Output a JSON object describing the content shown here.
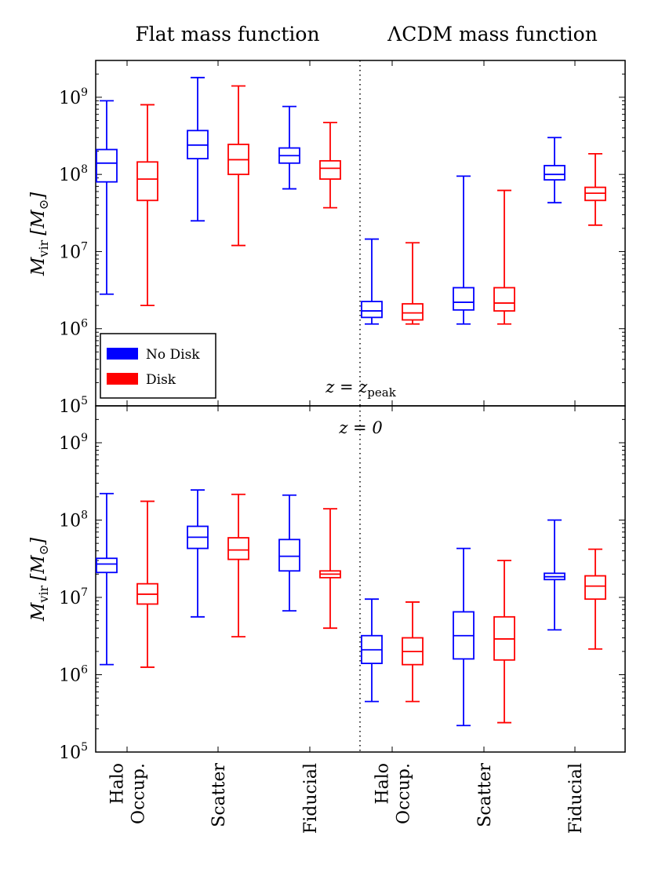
{
  "chart_data": {
    "type": "boxplot",
    "column_titles": [
      "Flat mass function",
      "ΛCDM mass function"
    ],
    "categories": [
      [
        "Halo",
        "Occup."
      ],
      [
        "Scatter"
      ],
      [
        "Fiducial"
      ],
      [
        "Halo",
        "Occup."
      ],
      [
        "Scatter"
      ],
      [
        "Fiducial"
      ]
    ],
    "ylabel": {
      "symbol": "M",
      "subscript": "vir",
      "unit_open": "[",
      "unit_symbol": "M",
      "unit_subscript": "⊙",
      "unit_close": "]"
    },
    "yscale": "log",
    "ylim": [
      100000,
      3000000000
    ],
    "yticks": [
      {
        "base": "10",
        "exp": "5",
        "value": 100000
      },
      {
        "base": "10",
        "exp": "6",
        "value": 1000000
      },
      {
        "base": "10",
        "exp": "7",
        "value": 10000000
      },
      {
        "base": "10",
        "exp": "8",
        "value": 100000000
      },
      {
        "base": "10",
        "exp": "9",
        "value": 1000000000
      }
    ],
    "legend": {
      "placement": "bottom-left of top panel",
      "entries": [
        {
          "name": "No Disk",
          "color": "#0000ff"
        },
        {
          "name": "Disk",
          "color": "#ff0000"
        }
      ]
    },
    "panels": [
      {
        "annotation": {
          "base": "z = z",
          "subscript": "peak"
        },
        "series": [
          {
            "name": "No Disk",
            "color": "#0000ff",
            "boxes": [
              {
                "min": 2800000,
                "q1": 80000000,
                "median": 140000000,
                "q3": 210000000,
                "max": 900000000
              },
              {
                "min": 25000000,
                "q1": 160000000,
                "median": 240000000,
                "q3": 370000000,
                "max": 1800000000
              },
              {
                "min": 65000000,
                "q1": 140000000,
                "median": 175000000,
                "q3": 220000000,
                "max": 760000000
              },
              {
                "min": 1150000,
                "q1": 1400000,
                "median": 1700000,
                "q3": 2250000,
                "max": 14500000
              },
              {
                "min": 1150000,
                "q1": 1750000,
                "median": 2200000,
                "q3": 3400000,
                "max": 95000000
              },
              {
                "min": 43000000,
                "q1": 85000000,
                "median": 100000000,
                "q3": 130000000,
                "max": 300000000
              }
            ]
          },
          {
            "name": "Disk",
            "color": "#ff0000",
            "boxes": [
              {
                "min": 2000000,
                "q1": 46000000,
                "median": 87000000,
                "q3": 145000000,
                "max": 800000000
              },
              {
                "min": 12000000,
                "q1": 100000000,
                "median": 155000000,
                "q3": 245000000,
                "max": 1400000000
              },
              {
                "min": 37000000,
                "q1": 87000000,
                "median": 120000000,
                "q3": 150000000,
                "max": 470000000
              },
              {
                "min": 1150000,
                "q1": 1300000,
                "median": 1600000,
                "q3": 2100000,
                "max": 13000000
              },
              {
                "min": 1150000,
                "q1": 1700000,
                "median": 2150000,
                "q3": 3400000,
                "max": 62000000
              },
              {
                "min": 22000000,
                "q1": 46000000,
                "median": 57000000,
                "q3": 68000000,
                "max": 185000000
              }
            ]
          }
        ]
      },
      {
        "annotation": {
          "base": "z = 0",
          "subscript": ""
        },
        "series": [
          {
            "name": "No Disk",
            "color": "#0000ff",
            "boxes": [
              {
                "min": 1350000,
                "q1": 21000000,
                "median": 27000000,
                "q3": 32000000,
                "max": 220000000
              },
              {
                "min": 5600000,
                "q1": 43000000,
                "median": 60000000,
                "q3": 83000000,
                "max": 245000000
              },
              {
                "min": 6700000,
                "q1": 22000000,
                "median": 34000000,
                "q3": 56000000,
                "max": 210000000
              },
              {
                "min": 450000,
                "q1": 1400000,
                "median": 2100000,
                "q3": 3200000,
                "max": 9500000
              },
              {
                "min": 220000,
                "q1": 1600000,
                "median": 3200000,
                "q3": 6500000,
                "max": 43000000
              },
              {
                "min": 3800000,
                "q1": 17000000,
                "median": 18500000,
                "q3": 20500000,
                "max": 100000000
              }
            ]
          },
          {
            "name": "Disk",
            "color": "#ff0000",
            "boxes": [
              {
                "min": 1250000,
                "q1": 8200000,
                "median": 11000000,
                "q3": 15000000,
                "max": 175000000
              },
              {
                "min": 3100000,
                "q1": 31000000,
                "median": 41000000,
                "q3": 59000000,
                "max": 215000000
              },
              {
                "min": 4000000,
                "q1": 18000000,
                "median": 20000000,
                "q3": 22000000,
                "max": 140000000
              },
              {
                "min": 450000,
                "q1": 1350000,
                "median": 2000000,
                "q3": 3000000,
                "max": 8700000
              },
              {
                "min": 240000,
                "q1": 1550000,
                "median": 2900000,
                "q3": 5600000,
                "max": 30000000
              },
              {
                "min": 2150000,
                "q1": 9500000,
                "median": 14000000,
                "q3": 19000000,
                "max": 42000000
              }
            ]
          }
        ]
      }
    ]
  }
}
